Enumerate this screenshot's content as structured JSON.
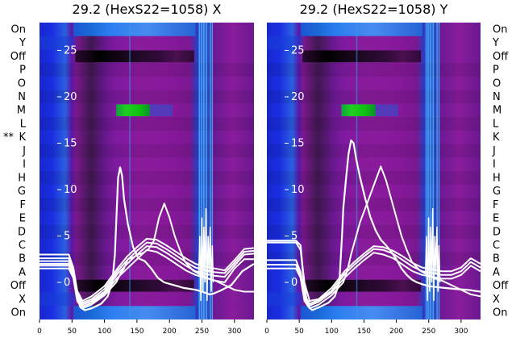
{
  "chart_data": [
    {
      "type": "heatmap",
      "title": "29.2 (HexS22=1058) X",
      "row_labels": [
        "On",
        "Y",
        "Off",
        "P",
        "O",
        "N",
        "M",
        "L",
        "K",
        "J",
        "I",
        "H",
        "G",
        "F",
        "E",
        "D",
        "C",
        "B",
        "A",
        "Off",
        "X",
        "On"
      ],
      "row_labels_side": "left",
      "marker": "**",
      "marker_row": "K",
      "xlim": [
        0,
        330
      ],
      "xticks": [
        0,
        50,
        100,
        150,
        200,
        250,
        300
      ],
      "overlay_ylim": [
        -4,
        28
      ],
      "overlay_yticks": [
        0,
        5,
        10,
        15,
        20,
        25
      ],
      "green_band": {
        "row": "M",
        "x_start": 118,
        "x_end": 170
      },
      "traces": [
        {
          "x": [
            0,
            30,
            45,
            52,
            57,
            63,
            70,
            80,
            95,
            105,
            112,
            116,
            119,
            121,
            124,
            127,
            130,
            136,
            144,
            152,
            162,
            172,
            182,
            192,
            202,
            212,
            222,
            232,
            240,
            246,
            250,
            254,
            258,
            262,
            268,
            278,
            295,
            312,
            330
          ],
          "y": [
            2,
            2,
            2,
            1.5,
            -1.5,
            -2.7,
            -3,
            -2.8,
            -2.3,
            -1.5,
            0,
            3,
            8,
            11.3,
            12.4,
            11.5,
            9,
            6.3,
            3.8,
            2.6,
            2.3,
            1.5,
            0.5,
            0,
            -0.2,
            -0.4,
            -0.6,
            -0.7,
            -0.8,
            -0.9,
            -1,
            -1.1,
            -1.2,
            -1.3,
            -1.2,
            -0.9,
            -0.3,
            1.2,
            2
          ]
        },
        {
          "x": [
            0,
            30,
            45,
            52,
            58,
            66,
            80,
            100,
            118,
            125,
            130,
            136,
            144,
            152,
            160,
            168,
            176,
            184,
            192,
            200,
            208,
            216,
            224,
            236,
            248,
            260,
            270,
            285,
            300,
            315,
            330
          ],
          "y": [
            1.5,
            1.5,
            1.5,
            0.5,
            -2,
            -2.8,
            -2.4,
            -1.4,
            0,
            1,
            1.5,
            2.5,
            2.7,
            3,
            3.2,
            3.6,
            4.5,
            7,
            8.5,
            7,
            5,
            3.5,
            2.2,
            1.3,
            0.8,
            0.4,
            0.2,
            -0.3,
            -0.8,
            -1,
            -1
          ]
        },
        {
          "x": [
            0,
            30,
            45,
            52,
            58,
            66,
            80,
            100,
            120,
            135,
            150,
            165,
            180,
            195,
            210,
            225,
            240,
            255,
            270,
            285,
            300,
            315,
            330
          ],
          "y": [
            1.8,
            1.8,
            1.8,
            0.6,
            -1.8,
            -2.6,
            -2.2,
            -1.2,
            0.5,
            1.5,
            2.5,
            3.5,
            3.3,
            2.7,
            2,
            1.3,
            0.8,
            0.5,
            0.2,
            0,
            1.5,
            2.5,
            2.5
          ]
        },
        {
          "x": [
            0,
            30,
            45,
            52,
            58,
            66,
            80,
            100,
            120,
            135,
            150,
            165,
            180,
            195,
            210,
            225,
            240,
            255,
            270,
            285,
            300,
            315,
            330
          ],
          "y": [
            2.3,
            2.3,
            2.3,
            1,
            -1.5,
            -2.4,
            -2,
            -1,
            0.9,
            2,
            3,
            3.9,
            3.8,
            3.2,
            2.5,
            1.8,
            1.2,
            0.9,
            0.7,
            0.6,
            1.8,
            3,
            3.1
          ]
        },
        {
          "x": [
            0,
            30,
            45,
            52,
            58,
            66,
            80,
            100,
            120,
            135,
            150,
            165,
            180,
            195,
            210,
            225,
            240,
            255,
            270,
            285,
            300,
            315,
            330
          ],
          "y": [
            2.6,
            2.6,
            2.6,
            1.3,
            -1.2,
            -2.2,
            -1.8,
            -0.7,
            1.2,
            2.4,
            3.4,
            4.3,
            4.2,
            3.6,
            2.9,
            2.2,
            1.6,
            1.3,
            1.1,
            1,
            2.1,
            3.3,
            3.4
          ]
        },
        {
          "x": [
            0,
            30,
            45,
            52,
            58,
            66,
            80,
            100,
            120,
            135,
            150,
            165,
            180,
            195,
            210,
            225,
            240,
            255,
            270,
            285,
            300,
            315,
            330
          ],
          "y": [
            3,
            3,
            3,
            1.6,
            -0.9,
            -2,
            -1.5,
            -0.4,
            1.5,
            2.8,
            3.8,
            4.7,
            4.6,
            4,
            3.3,
            2.6,
            2,
            1.7,
            1.5,
            1.3,
            2.4,
            3.6,
            3.7
          ]
        }
      ]
    },
    {
      "type": "heatmap",
      "title": "29.2 (HexS22=1058) Y",
      "row_labels": [
        "On",
        "Y",
        "Off",
        "P",
        "O",
        "N",
        "M",
        "L",
        "K",
        "J",
        "I",
        "H",
        "G",
        "F",
        "E",
        "D",
        "C",
        "B",
        "A",
        "Off",
        "X",
        "On"
      ],
      "row_labels_side": "right",
      "xlim": [
        0,
        330
      ],
      "xticks": [
        0,
        50,
        100,
        150,
        200,
        250,
        300
      ],
      "overlay_ylim": [
        -4,
        28
      ],
      "overlay_yticks": [
        0,
        5,
        10,
        15,
        20,
        25
      ],
      "green_band": {
        "row": "M",
        "x_start": 115,
        "x_end": 168
      },
      "traces": [
        {
          "x": [
            0,
            30,
            45,
            52,
            57,
            63,
            70,
            80,
            95,
            105,
            112,
            116,
            118,
            122,
            126,
            130,
            134,
            138,
            144,
            152,
            160,
            168,
            176,
            184,
            192,
            200,
            208,
            216,
            224,
            232,
            240,
            250,
            262,
            275,
            290,
            310,
            330
          ],
          "y": [
            4.5,
            4.5,
            4.5,
            4,
            0,
            -2.5,
            -3,
            -2.7,
            -2.2,
            -1.5,
            0,
            5,
            8,
            11,
            13.8,
            15.3,
            15,
            13.3,
            11.3,
            9,
            7,
            5.6,
            4.6,
            4,
            3.3,
            2.5,
            1.5,
            0.8,
            0.3,
            0,
            -0.2,
            -0.4,
            -0.5,
            -0.6,
            -0.7,
            -0.8,
            -1
          ]
        },
        {
          "x": [
            0,
            30,
            45,
            52,
            58,
            66,
            80,
            100,
            118,
            125,
            130,
            136,
            144,
            152,
            160,
            168,
            176,
            184,
            192,
            200,
            208,
            216,
            224,
            236,
            248,
            260,
            270,
            285,
            300,
            315,
            330
          ],
          "y": [
            1.5,
            1.5,
            1.5,
            0.5,
            -2,
            -2.8,
            -2.4,
            -1.4,
            0,
            1.5,
            3,
            4.5,
            6.5,
            8,
            9.5,
            11,
            12.5,
            11,
            9,
            7,
            5,
            3.5,
            2.2,
            1.3,
            0.8,
            0.4,
            0.2,
            -0.3,
            -0.8,
            -1.3,
            -1.5
          ]
        },
        {
          "x": [
            0,
            30,
            45,
            52,
            58,
            66,
            80,
            100,
            120,
            135,
            150,
            165,
            180,
            195,
            210,
            225,
            240,
            255,
            270,
            285,
            300,
            315,
            330
          ],
          "y": [
            1.9,
            1.9,
            1.9,
            0.7,
            -1.7,
            -2.5,
            -2.1,
            -1.1,
            0.5,
            1.5,
            2.4,
            3.2,
            3,
            2.6,
            1.9,
            1.2,
            0.8,
            0.6,
            0.4,
            0.4,
            0.8,
            1.8,
            1.2
          ]
        },
        {
          "x": [
            0,
            30,
            45,
            52,
            58,
            66,
            80,
            100,
            120,
            135,
            150,
            165,
            180,
            195,
            210,
            225,
            240,
            255,
            270,
            285,
            300,
            315,
            330
          ],
          "y": [
            2.4,
            2.4,
            2.4,
            1.1,
            -1.4,
            -2.3,
            -1.9,
            -0.9,
            0.9,
            1.9,
            2.8,
            3.6,
            3.5,
            3.1,
            2.4,
            1.7,
            1.2,
            1,
            0.8,
            0.8,
            1.2,
            2.2,
            1.6
          ]
        },
        {
          "x": [
            0,
            30,
            45,
            52,
            58,
            66,
            80,
            100,
            120,
            135,
            150,
            165,
            180,
            195,
            210,
            225,
            240,
            255,
            270,
            285,
            300,
            315,
            330
          ],
          "y": [
            4.3,
            4.3,
            4.3,
            3.5,
            0,
            -2,
            -1.8,
            -0.6,
            1.2,
            2.2,
            3.1,
            3.9,
            3.8,
            3.4,
            2.8,
            2.1,
            1.6,
            1.4,
            1.2,
            1.2,
            1.6,
            2.6,
            2
          ]
        }
      ]
    }
  ]
}
